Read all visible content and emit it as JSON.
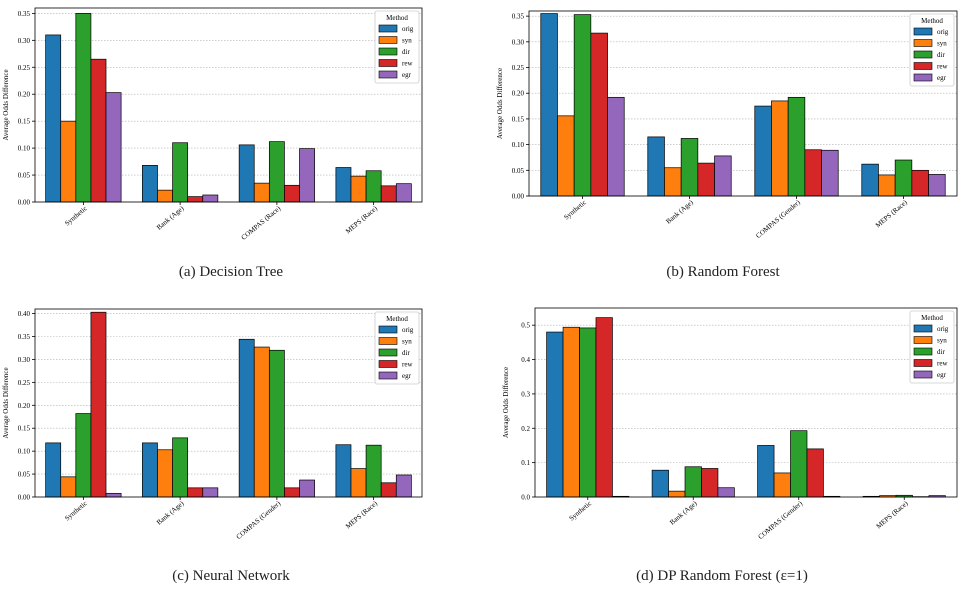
{
  "method_legend_title": "Method",
  "series_colors": {
    "orig": "#1f77b4",
    "syn": "#ff7f0e",
    "dir": "#2ca02c",
    "rew": "#d62728",
    "egr": "#9467bd"
  },
  "chart_data": [
    {
      "id": "a",
      "type": "bar",
      "caption": "(a)  Decision Tree",
      "ylabel": "Average Odds Difference",
      "categories": [
        "Synthetic",
        "Bank (Age)",
        "COMPAS (Race)",
        "MEPS (Race)"
      ],
      "ylim": [
        0,
        0.36
      ],
      "yticks": [
        "0.00",
        "0.05",
        "0.10",
        "0.15",
        "0.20",
        "0.25",
        "0.30",
        "0.35"
      ],
      "grid": true,
      "legend_position": "top-right",
      "series": [
        {
          "name": "orig",
          "values": [
            0.31,
            0.068,
            0.106,
            0.064
          ]
        },
        {
          "name": "syn",
          "values": [
            0.15,
            0.022,
            0.035,
            0.048
          ]
        },
        {
          "name": "dir",
          "values": [
            0.35,
            0.11,
            0.112,
            0.058
          ]
        },
        {
          "name": "rew",
          "values": [
            0.265,
            0.01,
            0.031,
            0.03
          ]
        },
        {
          "name": "egr",
          "values": [
            0.203,
            0.013,
            0.099,
            0.034
          ]
        }
      ]
    },
    {
      "id": "b",
      "type": "bar",
      "caption": "(b)  Random Forest",
      "ylabel": "Average Odds Difference",
      "categories": [
        "Synthetic",
        "Bank (Age)",
        "COMPAS (Gender)",
        "MEPS (Race)"
      ],
      "ylim": [
        0,
        0.36
      ],
      "yticks": [
        "0.00",
        "0.05",
        "0.10",
        "0.15",
        "0.20",
        "0.25",
        "0.30",
        "0.35"
      ],
      "grid": true,
      "legend_position": "top-right",
      "series": [
        {
          "name": "orig",
          "values": [
            0.355,
            0.115,
            0.175,
            0.062
          ]
        },
        {
          "name": "syn",
          "values": [
            0.156,
            0.055,
            0.185,
            0.041
          ]
        },
        {
          "name": "dir",
          "values": [
            0.353,
            0.112,
            0.192,
            0.07
          ]
        },
        {
          "name": "rew",
          "values": [
            0.317,
            0.064,
            0.09,
            0.05
          ]
        },
        {
          "name": "egr",
          "values": [
            0.192,
            0.078,
            0.089,
            0.042
          ]
        }
      ]
    },
    {
      "id": "c",
      "type": "bar",
      "caption": "(c)  Neural Network",
      "ylabel": "Average Odds Difference",
      "categories": [
        "Synthetic",
        "Bank (Age)",
        "COMPAS (Gender)",
        "MEPS (Race)"
      ],
      "ylim": [
        0,
        0.41
      ],
      "yticks": [
        "0.00",
        "0.05",
        "0.10",
        "0.15",
        "0.20",
        "0.25",
        "0.30",
        "0.35",
        "0.40"
      ],
      "grid": true,
      "legend_position": "top-right",
      "series": [
        {
          "name": "orig",
          "values": [
            0.118,
            0.118,
            0.344,
            0.114
          ]
        },
        {
          "name": "syn",
          "values": [
            0.044,
            0.103,
            0.327,
            0.062
          ]
        },
        {
          "name": "dir",
          "values": [
            0.182,
            0.129,
            0.32,
            0.113
          ]
        },
        {
          "name": "rew",
          "values": [
            0.403,
            0.02,
            0.02,
            0.031
          ]
        },
        {
          "name": "egr",
          "values": [
            0.008,
            0.02,
            0.037,
            0.048
          ]
        }
      ]
    },
    {
      "id": "d",
      "type": "bar",
      "caption": "(d)  DP Random Forest (ε=1)",
      "ylabel": "Average Odds Difference",
      "categories": [
        "Synthetic",
        "Bank (Age)",
        "COMPAS (Gender)",
        "MEPS (Race)"
      ],
      "ylim": [
        0,
        0.55
      ],
      "yticks": [
        "0.0",
        "0.1",
        "0.2",
        "0.3",
        "0.4",
        "0.5"
      ],
      "grid": true,
      "legend_position": "top-right",
      "series": [
        {
          "name": "orig",
          "values": [
            0.48,
            0.078,
            0.15,
            0.002
          ]
        },
        {
          "name": "syn",
          "values": [
            0.494,
            0.017,
            0.07,
            0.004
          ]
        },
        {
          "name": "dir",
          "values": [
            0.492,
            0.088,
            0.193,
            0.005
          ]
        },
        {
          "name": "rew",
          "values": [
            0.522,
            0.083,
            0.14,
            0.001
          ]
        },
        {
          "name": "egr",
          "values": [
            0.002,
            0.027,
            0.002,
            0.004
          ]
        }
      ]
    }
  ]
}
